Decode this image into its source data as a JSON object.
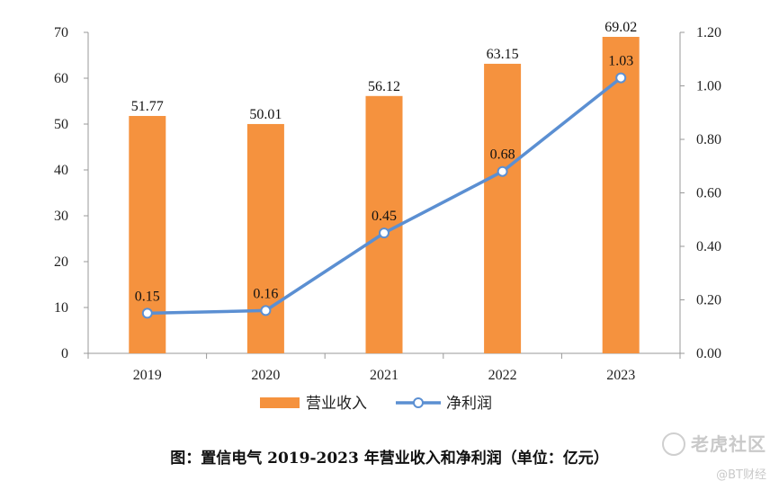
{
  "chart_data": {
    "type": "bar+line",
    "categories": [
      "2019",
      "2020",
      "2021",
      "2022",
      "2023"
    ],
    "series": [
      {
        "name": "营业收入",
        "type": "bar",
        "axis": "left",
        "color": "#F5923E",
        "values": [
          51.77,
          50.01,
          56.12,
          63.15,
          69.02
        ],
        "labels": [
          "51.77",
          "50.01",
          "56.12",
          "63.15",
          "69.02"
        ]
      },
      {
        "name": "净利润",
        "type": "line",
        "axis": "right",
        "color": "#5B8FD2",
        "values": [
          0.15,
          0.16,
          0.45,
          0.68,
          1.03
        ],
        "labels": [
          "0.15",
          "0.16",
          "0.45",
          "0.68",
          "1.03"
        ]
      }
    ],
    "left_axis": {
      "range": [
        0,
        70
      ],
      "ticks": [
        "0",
        "10",
        "20",
        "30",
        "40",
        "50",
        "60",
        "70"
      ]
    },
    "right_axis": {
      "range": [
        0,
        1.2
      ],
      "ticks": [
        "0.00",
        "0.20",
        "0.40",
        "0.60",
        "0.80",
        "1.00",
        "1.20"
      ]
    },
    "legend_position": "bottom",
    "grid": false
  },
  "caption": "图：置信电气 2019-2023 年营业收入和净利润（单位：亿元）",
  "watermark": {
    "main": "老虎社区",
    "sub": "@BT财经"
  }
}
